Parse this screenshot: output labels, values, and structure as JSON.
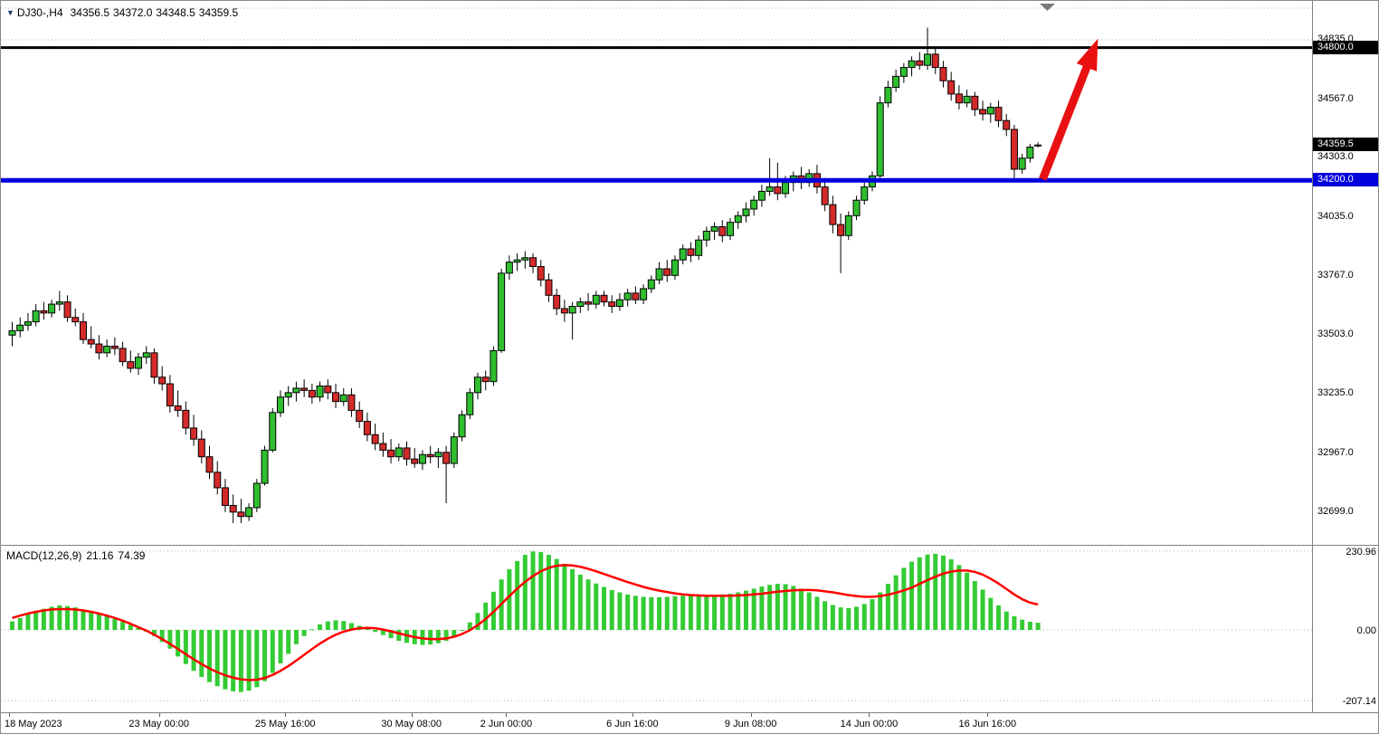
{
  "symbol_info": {
    "dropdown_icon": "chart-symbol-triangle",
    "symbol": "DJ30-,H4",
    "open": "34356.5",
    "high": "34372.0",
    "low": "34348.5",
    "close": "34359.5"
  },
  "colors": {
    "bull": "#2fbe2f",
    "bear": "#d42a2a",
    "wick": "#000000",
    "histogram": "#33cc33",
    "signal_line": "#ff0000",
    "support": "#0000dd",
    "resistance": "#000000",
    "current_price_bg": "#000000",
    "arrow": "#e81010",
    "grid": "#b5b5b5",
    "axis_border": "#808080",
    "symbol_triangle": "#1b3a6d",
    "shift_marker": "#7a7a7a"
  },
  "chart_data": {
    "type": "candlestick",
    "symbol": "DJ30-",
    "timeframe": "H4",
    "price_ticks": [
      {
        "label": "34835.0",
        "value": 34835.0,
        "grid": true
      },
      {
        "label": "34567.0",
        "value": 34567.0,
        "grid": false
      },
      {
        "label": "34303.0",
        "value": 34303.0,
        "grid": false
      },
      {
        "label": "34035.0",
        "value": 34035.0,
        "grid": false
      },
      {
        "label": "33767.0",
        "value": 33767.0,
        "grid": false
      },
      {
        "label": "33503.0",
        "value": 33503.0,
        "grid": false
      },
      {
        "label": "33235.0",
        "value": 33235.0,
        "grid": false
      },
      {
        "label": "32967.0",
        "value": 32967.0,
        "grid": false
      },
      {
        "label": "32699.0",
        "value": 32699.0,
        "grid": false
      }
    ],
    "levels": {
      "resistance": {
        "label": "34800.0",
        "value": 34800.0
      },
      "current_price": {
        "label": "34359.5",
        "value": 34359.5
      },
      "support": {
        "label": "34200.0",
        "value": 34200.0
      }
    },
    "x_labels": [
      {
        "label": "18 May 2023",
        "bar": 0
      },
      {
        "label": "23 May 00:00",
        "bar": 19
      },
      {
        "label": "25 May 16:00",
        "bar": 35
      },
      {
        "label": "30 May 08:00",
        "bar": 51
      },
      {
        "label": "2 Jun 00:00",
        "bar": 63
      },
      {
        "label": "6 Jun 16:00",
        "bar": 79
      },
      {
        "label": "9 Jun 08:00",
        "bar": 94
      },
      {
        "label": "14 Jun 00:00",
        "bar": 109
      },
      {
        "label": "16 Jun 16:00",
        "bar": 124
      }
    ],
    "annotations": {
      "arrow": {
        "type": "up-trend-arrow",
        "from": {
          "bar": 131,
          "price": 34205
        },
        "to": {
          "bar": 138,
          "price": 34840
        }
      }
    },
    "candles": [
      [
        33500,
        33560,
        33450,
        33520
      ],
      [
        33520,
        33580,
        33490,
        33545
      ],
      [
        33545,
        33600,
        33520,
        33560
      ],
      [
        33560,
        33640,
        33540,
        33610
      ],
      [
        33610,
        33650,
        33570,
        33600
      ],
      [
        33600,
        33660,
        33580,
        33640
      ],
      [
        33640,
        33700,
        33610,
        33650
      ],
      [
        33650,
        33680,
        33560,
        33580
      ],
      [
        33580,
        33620,
        33540,
        33560
      ],
      [
        33560,
        33600,
        33460,
        33480
      ],
      [
        33480,
        33540,
        33440,
        33460
      ],
      [
        33460,
        33500,
        33390,
        33420
      ],
      [
        33420,
        33480,
        33400,
        33450
      ],
      [
        33450,
        33490,
        33410,
        33440
      ],
      [
        33440,
        33470,
        33360,
        33380
      ],
      [
        33380,
        33430,
        33330,
        33350
      ],
      [
        33350,
        33420,
        33320,
        33400
      ],
      [
        33400,
        33450,
        33370,
        33420
      ],
      [
        33420,
        33440,
        33280,
        33310
      ],
      [
        33310,
        33360,
        33250,
        33280
      ],
      [
        33280,
        33320,
        33150,
        33180
      ],
      [
        33180,
        33250,
        33130,
        33160
      ],
      [
        33160,
        33200,
        33050,
        33080
      ],
      [
        33080,
        33140,
        33000,
        33030
      ],
      [
        33030,
        33070,
        32920,
        32950
      ],
      [
        32950,
        33000,
        32850,
        32880
      ],
      [
        32880,
        32930,
        32780,
        32810
      ],
      [
        32810,
        32850,
        32700,
        32730
      ],
      [
        32730,
        32780,
        32650,
        32700
      ],
      [
        32700,
        32760,
        32650,
        32680
      ],
      [
        32680,
        32740,
        32660,
        32720
      ],
      [
        32720,
        32850,
        32700,
        32830
      ],
      [
        32830,
        33000,
        32820,
        32980
      ],
      [
        32980,
        33170,
        32970,
        33150
      ],
      [
        33150,
        33250,
        33130,
        33220
      ],
      [
        33220,
        33270,
        33180,
        33240
      ],
      [
        33240,
        33290,
        33200,
        33260
      ],
      [
        33260,
        33300,
        33220,
        33250
      ],
      [
        33250,
        33280,
        33190,
        33220
      ],
      [
        33220,
        33290,
        33200,
        33270
      ],
      [
        33270,
        33300,
        33210,
        33240
      ],
      [
        33240,
        33280,
        33170,
        33200
      ],
      [
        33200,
        33260,
        33180,
        33230
      ],
      [
        33230,
        33260,
        33130,
        33160
      ],
      [
        33160,
        33200,
        33080,
        33110
      ],
      [
        33110,
        33150,
        33020,
        33050
      ],
      [
        33050,
        33100,
        32980,
        33010
      ],
      [
        33010,
        33060,
        32950,
        32980
      ],
      [
        32980,
        33030,
        32920,
        32950
      ],
      [
        32950,
        33010,
        32930,
        32990
      ],
      [
        32990,
        33020,
        32910,
        32940
      ],
      [
        32940,
        32990,
        32900,
        32920
      ],
      [
        32920,
        32980,
        32890,
        32960
      ],
      [
        32960,
        33000,
        32920,
        32950
      ],
      [
        32950,
        32990,
        32900,
        32970
      ],
      [
        32970,
        33000,
        32740,
        32920
      ],
      [
        32920,
        33060,
        32900,
        33040
      ],
      [
        33040,
        33160,
        33020,
        33140
      ],
      [
        33140,
        33260,
        33120,
        33240
      ],
      [
        33240,
        33330,
        33210,
        33310
      ],
      [
        33310,
        33340,
        33250,
        33290
      ],
      [
        33290,
        33450,
        33270,
        33430
      ],
      [
        33430,
        33800,
        33420,
        33780
      ],
      [
        33780,
        33860,
        33750,
        33830
      ],
      [
        33830,
        33870,
        33790,
        33840
      ],
      [
        33840,
        33880,
        33800,
        33850
      ],
      [
        33850,
        33870,
        33780,
        33810
      ],
      [
        33810,
        33840,
        33720,
        33750
      ],
      [
        33750,
        33780,
        33650,
        33680
      ],
      [
        33680,
        33710,
        33590,
        33620
      ],
      [
        33620,
        33660,
        33560,
        33600
      ],
      [
        33600,
        33650,
        33480,
        33630
      ],
      [
        33630,
        33670,
        33600,
        33650
      ],
      [
        33650,
        33690,
        33610,
        33640
      ],
      [
        33640,
        33700,
        33620,
        33680
      ],
      [
        33680,
        33700,
        33630,
        33650
      ],
      [
        33650,
        33680,
        33600,
        33630
      ],
      [
        33630,
        33690,
        33610,
        33660
      ],
      [
        33660,
        33710,
        33630,
        33690
      ],
      [
        33690,
        33720,
        33640,
        33660
      ],
      [
        33660,
        33730,
        33640,
        33710
      ],
      [
        33710,
        33770,
        33690,
        33750
      ],
      [
        33750,
        33830,
        33730,
        33800
      ],
      [
        33800,
        33840,
        33740,
        33770
      ],
      [
        33770,
        33860,
        33750,
        33840
      ],
      [
        33840,
        33910,
        33820,
        33890
      ],
      [
        33890,
        33920,
        33830,
        33860
      ],
      [
        33860,
        33950,
        33840,
        33930
      ],
      [
        33930,
        33990,
        33900,
        33970
      ],
      [
        33970,
        34010,
        33930,
        33990
      ],
      [
        33990,
        34020,
        33920,
        33950
      ],
      [
        33950,
        34030,
        33930,
        34010
      ],
      [
        34010,
        34060,
        33980,
        34040
      ],
      [
        34040,
        34100,
        34010,
        34070
      ],
      [
        34070,
        34130,
        34040,
        34110
      ],
      [
        34110,
        34180,
        34080,
        34150
      ],
      [
        34150,
        34300,
        34130,
        34170
      ],
      [
        34170,
        34280,
        34110,
        34140
      ],
      [
        34140,
        34220,
        34120,
        34190
      ],
      [
        34190,
        34240,
        34150,
        34220
      ],
      [
        34220,
        34260,
        34160,
        34190
      ],
      [
        34190,
        34250,
        34170,
        34230
      ],
      [
        34230,
        34270,
        34140,
        34170
      ],
      [
        34170,
        34210,
        34060,
        34090
      ],
      [
        34090,
        34130,
        33960,
        34000
      ],
      [
        34000,
        34050,
        33780,
        33950
      ],
      [
        33950,
        34060,
        33930,
        34040
      ],
      [
        34040,
        34130,
        34020,
        34110
      ],
      [
        34110,
        34190,
        34090,
        34170
      ],
      [
        34170,
        34240,
        34150,
        34220
      ],
      [
        34220,
        34580,
        34210,
        34550
      ],
      [
        34550,
        34650,
        34530,
        34620
      ],
      [
        34620,
        34700,
        34600,
        34670
      ],
      [
        34670,
        34730,
        34640,
        34710
      ],
      [
        34710,
        34760,
        34670,
        34740
      ],
      [
        34740,
        34780,
        34700,
        34720
      ],
      [
        34720,
        34890,
        34700,
        34770
      ],
      [
        34770,
        34800,
        34680,
        34710
      ],
      [
        34710,
        34740,
        34620,
        34650
      ],
      [
        34650,
        34690,
        34560,
        34590
      ],
      [
        34590,
        34630,
        34520,
        34550
      ],
      [
        34550,
        34610,
        34530,
        34580
      ],
      [
        34580,
        34600,
        34490,
        34520
      ],
      [
        34520,
        34560,
        34470,
        34500
      ],
      [
        34500,
        34550,
        34460,
        34530
      ],
      [
        34530,
        34560,
        34440,
        34470
      ],
      [
        34470,
        34500,
        34400,
        34430
      ],
      [
        34430,
        34450,
        34210,
        34250
      ],
      [
        34250,
        34320,
        34230,
        34300
      ],
      [
        34300,
        34365,
        34280,
        34350
      ],
      [
        34356.5,
        34372,
        34348.5,
        34359.5
      ]
    ],
    "macd": {
      "label": "MACD(12,26,9)",
      "macd_value_label": "21.16",
      "signal_value_label": "74.39",
      "y_ticks": [
        {
          "label": "230.96",
          "value": 230.96
        },
        {
          "label": "0.00",
          "value": 0.0
        },
        {
          "label": "-207.14",
          "value": -207.14
        }
      ],
      "histogram": [
        25,
        35,
        45,
        55,
        62,
        68,
        72,
        70,
        66,
        60,
        54,
        47,
        40,
        32,
        24,
        15,
        6,
        -5,
        -18,
        -35,
        -55,
        -78,
        -100,
        -120,
        -138,
        -153,
        -165,
        -174,
        -180,
        -182,
        -178,
        -168,
        -150,
        -126,
        -98,
        -70,
        -42,
        -18,
        2,
        16,
        25,
        28,
        26,
        20,
        12,
        3,
        -6,
        -15,
        -24,
        -32,
        -38,
        -42,
        -44,
        -43,
        -39,
        -32,
        -20,
        -2,
        22,
        50,
        80,
        112,
        148,
        178,
        202,
        220,
        230,
        228,
        220,
        208,
        194,
        178,
        162,
        148,
        136,
        126,
        117,
        110,
        104,
        100,
        97,
        96,
        96,
        97,
        99,
        100,
        101,
        102,
        103,
        103,
        104,
        106,
        110,
        115,
        121,
        127,
        132,
        135,
        134,
        129,
        121,
        110,
        97,
        84,
        73,
        66,
        64,
        68,
        76,
        90,
        110,
        135,
        160,
        182,
        200,
        213,
        221,
        223,
        218,
        207,
        190,
        168,
        143,
        118,
        94,
        72,
        54,
        40,
        30,
        24,
        21.16
      ],
      "signal": [
        35,
        42,
        48,
        53,
        57,
        60,
        61,
        61,
        60,
        57,
        53,
        48,
        42,
        35,
        27,
        18,
        8,
        -2,
        -14,
        -27,
        -41,
        -56,
        -71,
        -86,
        -100,
        -113,
        -124,
        -133,
        -140,
        -145,
        -147,
        -146,
        -141,
        -132,
        -120,
        -106,
        -90,
        -73,
        -56,
        -40,
        -26,
        -14,
        -5,
        1,
        5,
        6,
        5,
        1,
        -4,
        -10,
        -16,
        -21,
        -25,
        -27,
        -27,
        -25,
        -20,
        -12,
        -1,
        14,
        32,
        53,
        76,
        99,
        121,
        141,
        158,
        172,
        182,
        188,
        190,
        189,
        185,
        179,
        172,
        164,
        156,
        148,
        140,
        133,
        126,
        120,
        115,
        111,
        107,
        104,
        102,
        101,
        100,
        100,
        100,
        100,
        101,
        102,
        104,
        106,
        109,
        112,
        114,
        116,
        117,
        117,
        116,
        113,
        110,
        106,
        102,
        99,
        97,
        97,
        99,
        103,
        109,
        116,
        124,
        135,
        146,
        156,
        165,
        171,
        174,
        174,
        170,
        162,
        150,
        136,
        120,
        104,
        90,
        80,
        74.39
      ]
    }
  }
}
